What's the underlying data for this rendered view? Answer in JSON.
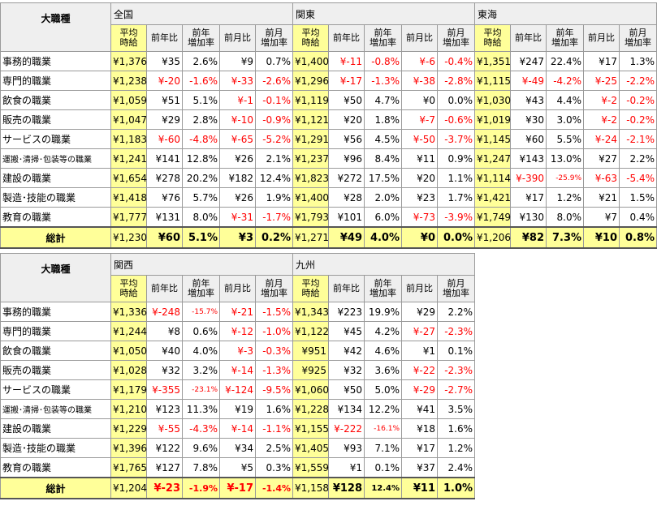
{
  "header_label": "大職種",
  "total_label": "総計",
  "col_headers": {
    "avg": [
      "平均",
      "時給"
    ],
    "yoy": "前年比",
    "yoy_rate": [
      "前年",
      "増加率"
    ],
    "mom": "前月比",
    "mom_rate": [
      "前月",
      "増加率"
    ]
  },
  "categories": [
    "事務的職業",
    "専門的職業",
    "飲食の職業",
    "販売の職業",
    "サービスの職業",
    "運搬･清掃･包装等の職業",
    "建設の職業",
    "製造･技能の職業",
    "教育の職業"
  ],
  "regions": {
    "zenkoku": {
      "name": "全国",
      "rows": [
        [
          "¥1,376",
          "¥35",
          "2.6%",
          "¥9",
          "0.7%"
        ],
        [
          "¥1,238",
          "¥-20",
          "-1.6%",
          "¥-33",
          "-2.6%"
        ],
        [
          "¥1,059",
          "¥51",
          "5.1%",
          "¥-1",
          "-0.1%"
        ],
        [
          "¥1,047",
          "¥29",
          "2.8%",
          "¥-10",
          "-0.9%"
        ],
        [
          "¥1,183",
          "¥-60",
          "-4.8%",
          "¥-65",
          "-5.2%"
        ],
        [
          "¥1,241",
          "¥141",
          "12.8%",
          "¥26",
          "2.1%"
        ],
        [
          "¥1,654",
          "¥278",
          "20.2%",
          "¥182",
          "12.4%"
        ],
        [
          "¥1,418",
          "¥76",
          "5.7%",
          "¥26",
          "1.9%"
        ],
        [
          "¥1,777",
          "¥131",
          "8.0%",
          "¥-31",
          "-1.7%"
        ]
      ],
      "total": [
        "¥1,230",
        "¥60",
        "5.1%",
        "¥3",
        "0.2%"
      ]
    },
    "kanto": {
      "name": "関東",
      "rows": [
        [
          "¥1,400",
          "¥-11",
          "-0.8%",
          "¥-6",
          "-0.4%"
        ],
        [
          "¥1,296",
          "¥-17",
          "-1.3%",
          "¥-38",
          "-2.8%"
        ],
        [
          "¥1,119",
          "¥50",
          "4.7%",
          "¥0",
          "0.0%"
        ],
        [
          "¥1,121",
          "¥20",
          "1.8%",
          "¥-7",
          "-0.6%"
        ],
        [
          "¥1,291",
          "¥56",
          "4.5%",
          "¥-50",
          "-3.7%"
        ],
        [
          "¥1,237",
          "¥96",
          "8.4%",
          "¥11",
          "0.9%"
        ],
        [
          "¥1,823",
          "¥272",
          "17.5%",
          "¥20",
          "1.1%"
        ],
        [
          "¥1,400",
          "¥28",
          "2.0%",
          "¥23",
          "1.7%"
        ],
        [
          "¥1,793",
          "¥101",
          "6.0%",
          "¥-73",
          "-3.9%"
        ]
      ],
      "total": [
        "¥1,271",
        "¥49",
        "4.0%",
        "¥0",
        "0.0%"
      ]
    },
    "tokai": {
      "name": "東海",
      "rows": [
        [
          "¥1,351",
          "¥247",
          "22.4%",
          "¥17",
          "1.3%"
        ],
        [
          "¥1,115",
          "¥-49",
          "-4.2%",
          "¥-25",
          "-2.2%"
        ],
        [
          "¥1,030",
          "¥43",
          "4.4%",
          "¥-2",
          "-0.2%"
        ],
        [
          "¥1,019",
          "¥30",
          "3.0%",
          "¥-2",
          "-0.2%"
        ],
        [
          "¥1,145",
          "¥60",
          "5.5%",
          "¥-24",
          "-2.1%"
        ],
        [
          "¥1,247",
          "¥143",
          "13.0%",
          "¥27",
          "2.2%"
        ],
        [
          "¥1,114",
          "¥-390",
          "-25.9%",
          "¥-63",
          "-5.4%"
        ],
        [
          "¥1,421",
          "¥17",
          "1.2%",
          "¥21",
          "1.5%"
        ],
        [
          "¥1,749",
          "¥130",
          "8.0%",
          "¥7",
          "0.4%"
        ]
      ],
      "total": [
        "¥1,206",
        "¥82",
        "7.3%",
        "¥10",
        "0.8%"
      ]
    },
    "kansai": {
      "name": "関西",
      "rows": [
        [
          "¥1,336",
          "¥-248",
          "-15.7%",
          "¥-21",
          "-1.5%"
        ],
        [
          "¥1,244",
          "¥8",
          "0.6%",
          "¥-12",
          "-1.0%"
        ],
        [
          "¥1,050",
          "¥40",
          "4.0%",
          "¥-3",
          "-0.3%"
        ],
        [
          "¥1,028",
          "¥32",
          "3.2%",
          "¥-14",
          "-1.3%"
        ],
        [
          "¥1,179",
          "¥-355",
          "-23.1%",
          "¥-124",
          "-9.5%"
        ],
        [
          "¥1,210",
          "¥123",
          "11.3%",
          "¥19",
          "1.6%"
        ],
        [
          "¥1,229",
          "¥-55",
          "-4.3%",
          "¥-14",
          "-1.1%"
        ],
        [
          "¥1,396",
          "¥122",
          "9.6%",
          "¥34",
          "2.5%"
        ],
        [
          "¥1,765",
          "¥127",
          "7.8%",
          "¥5",
          "0.3%"
        ]
      ],
      "total": [
        "¥1,204",
        "¥-23",
        "-1.9%",
        "¥-17",
        "-1.4%"
      ]
    },
    "kyushu": {
      "name": "九州",
      "rows": [
        [
          "¥1,343",
          "¥223",
          "19.9%",
          "¥29",
          "2.2%"
        ],
        [
          "¥1,122",
          "¥45",
          "4.2%",
          "¥-27",
          "-2.3%"
        ],
        [
          "¥951",
          "¥42",
          "4.6%",
          "¥1",
          "0.1%"
        ],
        [
          "¥925",
          "¥32",
          "3.6%",
          "¥-22",
          "-2.3%"
        ],
        [
          "¥1,060",
          "¥50",
          "5.0%",
          "¥-29",
          "-2.7%"
        ],
        [
          "¥1,228",
          "¥134",
          "12.2%",
          "¥41",
          "3.5%"
        ],
        [
          "¥1,155",
          "¥-222",
          "-16.1%",
          "¥18",
          "1.6%"
        ],
        [
          "¥1,405",
          "¥93",
          "7.1%",
          "¥17",
          "1.2%"
        ],
        [
          "¥1,559",
          "¥1",
          "0.1%",
          "¥37",
          "2.4%"
        ]
      ],
      "total": [
        "¥1,158",
        "¥128",
        "12.4%",
        "¥11",
        "1.0%"
      ]
    }
  },
  "colors": {
    "highlight": "#ffff99",
    "negative": "#ff0000",
    "header_bg": "#efefef"
  }
}
